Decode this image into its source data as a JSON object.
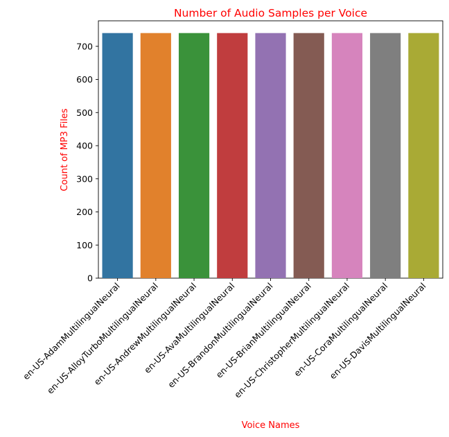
{
  "chart_data": {
    "type": "bar",
    "title": "Number of Audio Samples per Voice",
    "xlabel": "Voice Names",
    "ylabel": "Count of MP3 Files",
    "title_color": "#ff0000",
    "label_color": "#ff0000",
    "categories": [
      "en-US-AdamMultilingualNeural",
      "en-US-AlloyTurboMultilingualNeural",
      "en-US-AndrewMultilingualNeural",
      "en-US-AvaMultilingualNeural",
      "en-US-BrandonMultilingualNeural",
      "en-US-BrianMultilingualNeural",
      "en-US-ChristopherMultilingualNeural",
      "en-US-CoraMultilingualNeural",
      "en-US-DavisMultilingualNeural"
    ],
    "values": [
      740,
      740,
      740,
      740,
      740,
      740,
      740,
      740,
      740
    ],
    "colors": [
      "#3274a1",
      "#e1812c",
      "#3a923a",
      "#c03d3e",
      "#9372b2",
      "#845b53",
      "#d684bd",
      "#7f7f7f",
      "#a9aa35"
    ],
    "yticks": [
      0,
      100,
      200,
      300,
      400,
      500,
      600,
      700
    ],
    "ylim": [
      0,
      777
    ],
    "grid": false,
    "legend": "none"
  }
}
